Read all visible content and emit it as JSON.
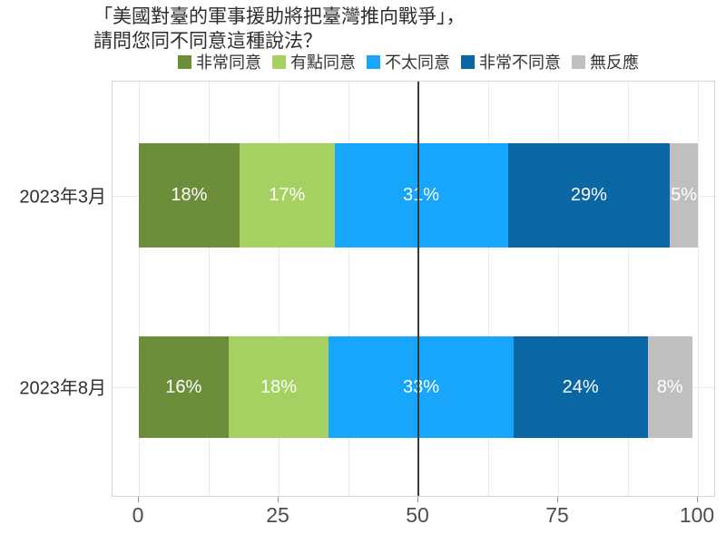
{
  "title": {
    "line1": "「美國對臺的軍事援助將把臺灣推向戰爭」，",
    "line2": "請問您同不同意這種說法？"
  },
  "chart_data": {
    "type": "bar",
    "orientation": "horizontal",
    "stacked": true,
    "title": "「美國對臺的軍事援助將把臺灣推向戰爭」，請問您同不同意這種說法？",
    "categories": [
      "2023年3月",
      "2023年8月"
    ],
    "series": [
      {
        "name": "非常同意",
        "color": "#6c8e3a",
        "values": [
          18,
          16
        ]
      },
      {
        "name": "有點同意",
        "color": "#a5d162",
        "values": [
          17,
          18
        ]
      },
      {
        "name": "不太同意",
        "color": "#18a5fc",
        "values": [
          31,
          33
        ]
      },
      {
        "name": "非常不同意",
        "color": "#0b67a4",
        "values": [
          29,
          24
        ]
      },
      {
        "name": "無反應",
        "color": "#bfbfbf",
        "values": [
          5,
          8
        ]
      }
    ],
    "value_suffix": "%",
    "xlim": [
      0,
      100
    ],
    "x_ticks": [
      "0",
      "25",
      "50",
      "75",
      "100"
    ],
    "x_tick_values": [
      0,
      25,
      50,
      75,
      100
    ],
    "minor_grid_step": 12.5,
    "reference_line_x": 50,
    "legend_position": "top",
    "grid": "vertical minor gridlines, light gray",
    "bar_label_color": "#ffffff"
  }
}
